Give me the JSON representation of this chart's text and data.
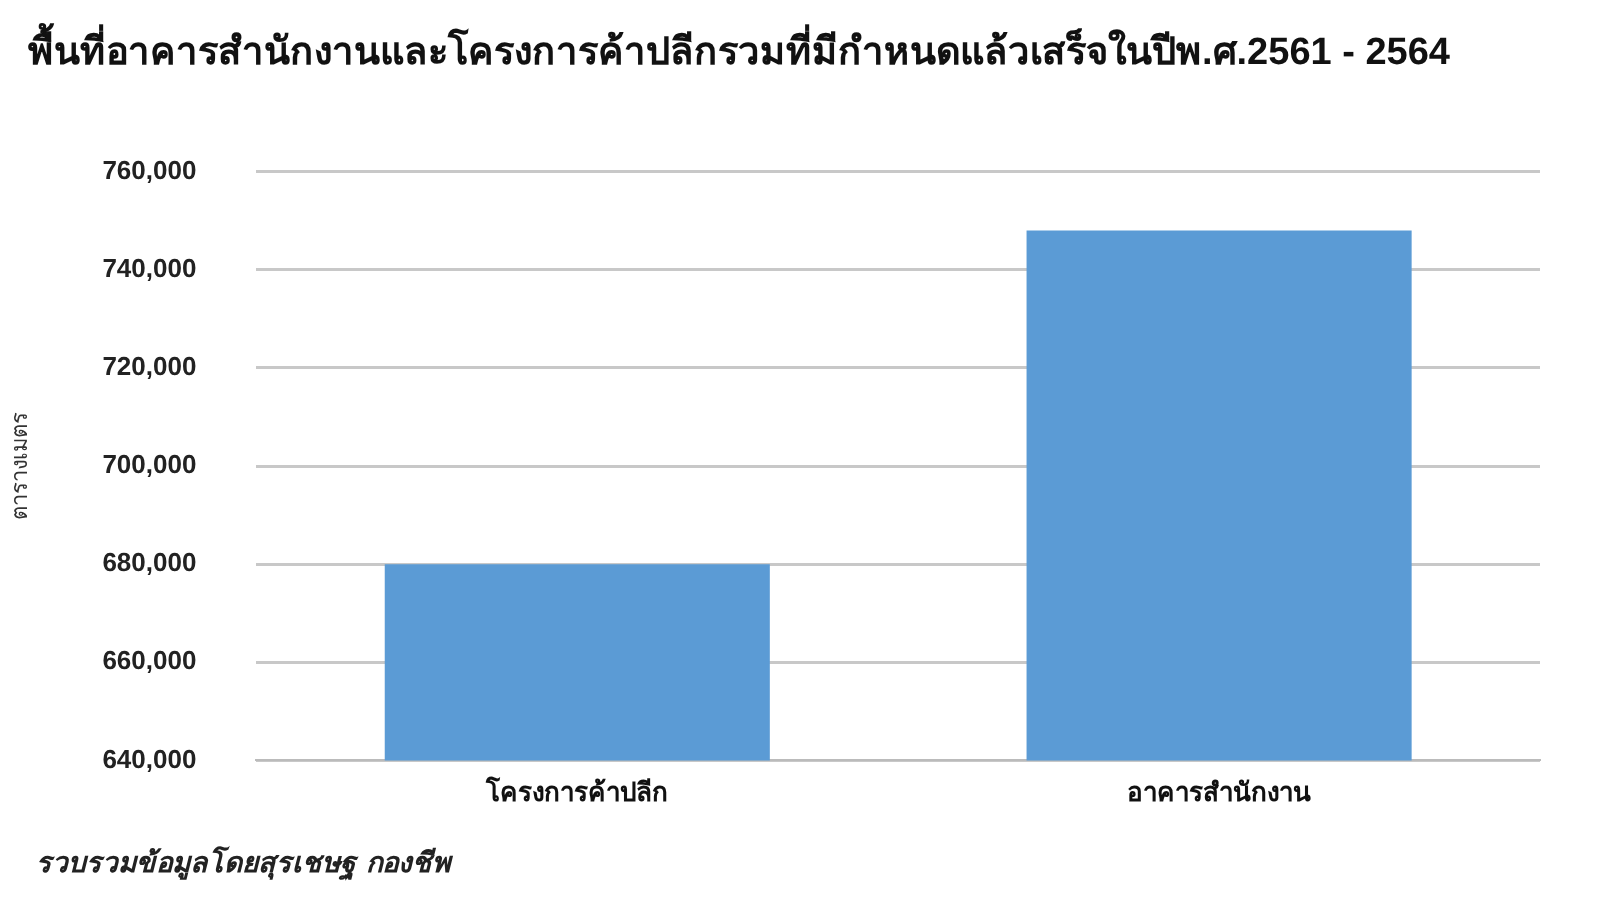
{
  "chart_data": {
    "type": "bar",
    "title": "พื้นที่อาคารสำนักงานและโครงการค้าปลีกรวมที่มีกำหนดแล้วเสร็จในปีพ.ศ.2561 - 2564",
    "ylabel": "ตารางเมตร",
    "categories": [
      "โครงการค้าปลีก",
      "อาคารสำนักงาน"
    ],
    "values": [
      680000,
      748000
    ],
    "color": "#5b9bd5",
    "ylim": [
      640000,
      760000
    ],
    "yticks": [
      {
        "value": 640000,
        "label": "640,000"
      },
      {
        "value": 660000,
        "label": "660,000"
      },
      {
        "value": 680000,
        "label": "680,000"
      },
      {
        "value": 700000,
        "label": "700,000"
      },
      {
        "value": 720000,
        "label": "720,000"
      },
      {
        "value": 740000,
        "label": "740,000"
      },
      {
        "value": 760000,
        "label": "760,000"
      }
    ],
    "grid": "y",
    "annotations": [
      "รวบรวมข้อมูลโดยสุรเชษฐ กองชีพ"
    ]
  }
}
